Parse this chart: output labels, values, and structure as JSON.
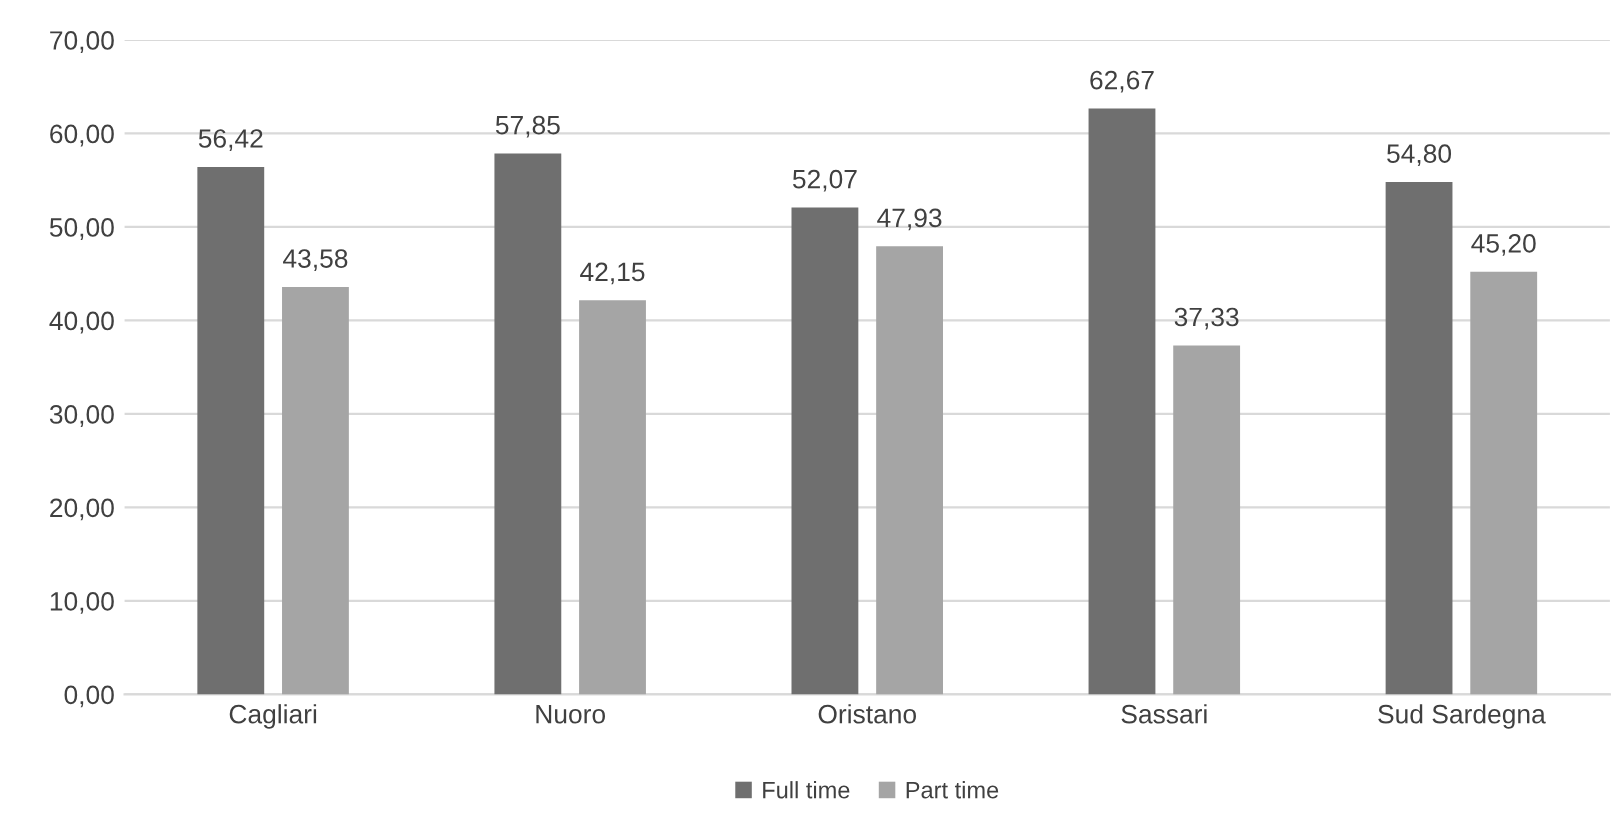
{
  "chart_data": {
    "type": "bar",
    "categories": [
      "Cagliari",
      "Nuoro",
      "Oristano",
      "Sassari",
      "Sud Sardegna"
    ],
    "series": [
      {
        "name": "Full time",
        "color": "#6f6f6f",
        "values": [
          56.42,
          57.85,
          52.07,
          62.67,
          54.8
        ],
        "value_labels": [
          "56,42",
          "57,85",
          "52,07",
          "62,67",
          "54,80"
        ]
      },
      {
        "name": "Part time",
        "color": "#a5a5a5",
        "values": [
          43.58,
          42.15,
          47.93,
          37.33,
          45.2
        ],
        "value_labels": [
          "43,58",
          "42,15",
          "47,93",
          "37,33",
          "45,20"
        ]
      }
    ],
    "ylim": [
      0,
      70
    ],
    "yticks": [
      {
        "value": 0,
        "label": "0,00"
      },
      {
        "value": 10,
        "label": "10,00"
      },
      {
        "value": 20,
        "label": "20,00"
      },
      {
        "value": 30,
        "label": "30,00"
      },
      {
        "value": 40,
        "label": "40,00"
      },
      {
        "value": 50,
        "label": "50,00"
      },
      {
        "value": 60,
        "label": "60,00"
      },
      {
        "value": 70,
        "label": "70,00"
      }
    ],
    "grid": "y",
    "legend": "bottom"
  }
}
